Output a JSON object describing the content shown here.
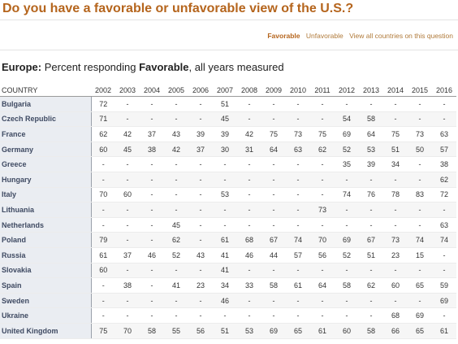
{
  "title": "Do you have a favorable or unfavorable view of the U.S.?",
  "toolbar": {
    "favorable": "Favorable",
    "unfavorable": "Unfavorable",
    "view_all": "View all countries on this question"
  },
  "subtitle": {
    "region": "Europe:",
    "prefix": " Percent responding ",
    "measure": "Favorable",
    "suffix": ", all years measured"
  },
  "table": {
    "country_header": "COUNTRY",
    "years": [
      "2002",
      "2003",
      "2004",
      "2005",
      "2006",
      "2007",
      "2008",
      "2009",
      "2010",
      "2011",
      "2012",
      "2013",
      "2014",
      "2015",
      "2016"
    ],
    "rows": [
      {
        "country": "Bulgaria",
        "values": [
          "72",
          "-",
          "-",
          "-",
          "-",
          "51",
          "-",
          "-",
          "-",
          "-",
          "-",
          "-",
          "-",
          "-",
          "-"
        ]
      },
      {
        "country": "Czech Republic",
        "values": [
          "71",
          "-",
          "-",
          "-",
          "-",
          "45",
          "-",
          "-",
          "-",
          "-",
          "54",
          "58",
          "-",
          "-",
          "-"
        ]
      },
      {
        "country": "France",
        "values": [
          "62",
          "42",
          "37",
          "43",
          "39",
          "39",
          "42",
          "75",
          "73",
          "75",
          "69",
          "64",
          "75",
          "73",
          "63"
        ]
      },
      {
        "country": "Germany",
        "values": [
          "60",
          "45",
          "38",
          "42",
          "37",
          "30",
          "31",
          "64",
          "63",
          "62",
          "52",
          "53",
          "51",
          "50",
          "57"
        ]
      },
      {
        "country": "Greece",
        "values": [
          "-",
          "-",
          "-",
          "-",
          "-",
          "-",
          "-",
          "-",
          "-",
          "-",
          "35",
          "39",
          "34",
          "-",
          "38"
        ]
      },
      {
        "country": "Hungary",
        "values": [
          "-",
          "-",
          "-",
          "-",
          "-",
          "-",
          "-",
          "-",
          "-",
          "-",
          "-",
          "-",
          "-",
          "-",
          "62"
        ]
      },
      {
        "country": "Italy",
        "values": [
          "70",
          "60",
          "-",
          "-",
          "-",
          "53",
          "-",
          "-",
          "-",
          "-",
          "74",
          "76",
          "78",
          "83",
          "72"
        ]
      },
      {
        "country": "Lithuania",
        "values": [
          "-",
          "-",
          "-",
          "-",
          "-",
          "-",
          "-",
          "-",
          "-",
          "73",
          "-",
          "-",
          "-",
          "-",
          "-"
        ]
      },
      {
        "country": "Netherlands",
        "values": [
          "-",
          "-",
          "-",
          "45",
          "-",
          "-",
          "-",
          "-",
          "-",
          "-",
          "-",
          "-",
          "-",
          "-",
          "63"
        ]
      },
      {
        "country": "Poland",
        "values": [
          "79",
          "-",
          "-",
          "62",
          "-",
          "61",
          "68",
          "67",
          "74",
          "70",
          "69",
          "67",
          "73",
          "74",
          "74"
        ]
      },
      {
        "country": "Russia",
        "values": [
          "61",
          "37",
          "46",
          "52",
          "43",
          "41",
          "46",
          "44",
          "57",
          "56",
          "52",
          "51",
          "23",
          "15",
          "-"
        ]
      },
      {
        "country": "Slovakia",
        "values": [
          "60",
          "-",
          "-",
          "-",
          "-",
          "41",
          "-",
          "-",
          "-",
          "-",
          "-",
          "-",
          "-",
          "-",
          "-"
        ]
      },
      {
        "country": "Spain",
        "values": [
          "-",
          "38",
          "-",
          "41",
          "23",
          "34",
          "33",
          "58",
          "61",
          "64",
          "58",
          "62",
          "60",
          "65",
          "59"
        ]
      },
      {
        "country": "Sweden",
        "values": [
          "-",
          "-",
          "-",
          "-",
          "-",
          "46",
          "-",
          "-",
          "-",
          "-",
          "-",
          "-",
          "-",
          "-",
          "69"
        ]
      },
      {
        "country": "Ukraine",
        "values": [
          "-",
          "-",
          "-",
          "-",
          "-",
          "-",
          "-",
          "-",
          "-",
          "-",
          "-",
          "-",
          "68",
          "69",
          "-"
        ]
      },
      {
        "country": "United Kingdom",
        "values": [
          "75",
          "70",
          "58",
          "55",
          "56",
          "51",
          "53",
          "69",
          "65",
          "61",
          "60",
          "58",
          "66",
          "65",
          "61"
        ]
      }
    ]
  },
  "colors": {
    "title": "#b5651d",
    "country_text": "#3f4a62",
    "country_bg": "#eaedf2"
  }
}
